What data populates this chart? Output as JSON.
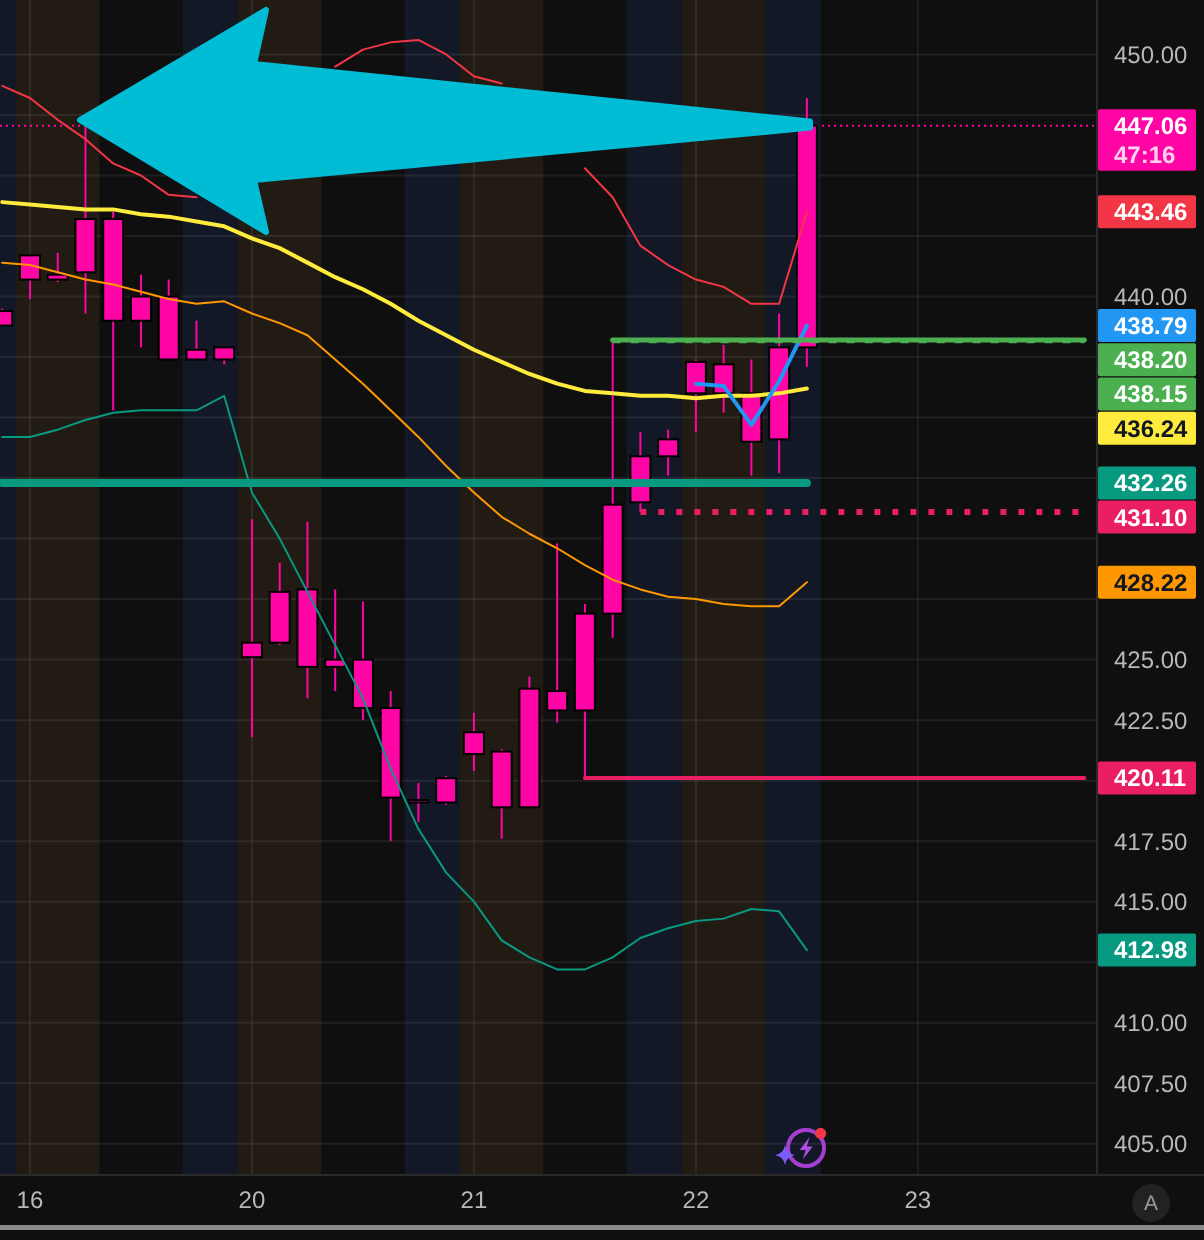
{
  "chart_data": {
    "type": "candlestick",
    "color": "#ff05a5",
    "categories": [
      null,
      "16",
      null,
      null,
      null,
      null,
      null,
      null,
      null,
      "20",
      null,
      null,
      null,
      null,
      null,
      null,
      null,
      "21",
      null,
      null,
      null,
      null,
      null,
      null,
      null,
      "22",
      null,
      null,
      null,
      null,
      null,
      null,
      null,
      "23",
      null,
      null,
      null,
      null,
      null,
      null
    ],
    "ohlc": [
      [
        438.8,
        439.5,
        438.8,
        439.4
      ],
      [
        440.7,
        441.7,
        439.9,
        441.7
      ],
      [
        440.7,
        441.8,
        440.6,
        440.9
      ],
      [
        441.0,
        447.1,
        439.3,
        443.2
      ],
      [
        439.0,
        443.5,
        435.3,
        443.2
      ],
      [
        439.0,
        440.9,
        437.9,
        440.0
      ],
      [
        437.4,
        440.7,
        437.4,
        440.0
      ],
      [
        437.4,
        439.0,
        437.4,
        437.8
      ],
      [
        437.4,
        437.9,
        437.2,
        437.9
      ],
      [
        425.1,
        430.8,
        421.8,
        425.7
      ],
      [
        425.7,
        429.0,
        425.6,
        427.8
      ],
      [
        424.7,
        430.7,
        423.4,
        427.9
      ],
      [
        424.7,
        427.9,
        423.7,
        425.0
      ],
      [
        423.0,
        427.4,
        422.5,
        425.0
      ],
      [
        419.3,
        423.7,
        417.5,
        423.0
      ],
      [
        419.1,
        419.9,
        418.3,
        419.2
      ],
      [
        419.1,
        420.2,
        419.0,
        420.1
      ],
      [
        421.1,
        422.8,
        420.4,
        422.0
      ],
      [
        418.9,
        421.3,
        417.6,
        421.2
      ],
      [
        418.9,
        424.3,
        418.9,
        423.8
      ],
      [
        422.9,
        429.8,
        422.4,
        423.7
      ],
      [
        422.9,
        427.3,
        420.11,
        426.9
      ],
      [
        426.9,
        438.2,
        425.9,
        431.4
      ],
      [
        431.5,
        434.4,
        431.1,
        433.4
      ],
      [
        433.4,
        434.5,
        432.6,
        434.1
      ],
      [
        436.0,
        437.4,
        434.4,
        437.3
      ],
      [
        436.0,
        438.0,
        435.2,
        437.2
      ],
      [
        434.0,
        437.4,
        432.6,
        436.0
      ],
      [
        434.1,
        439.3,
        432.7,
        437.9
      ],
      [
        437.9,
        448.2,
        437.1,
        447.06
      ],
      null,
      null,
      null,
      null,
      null,
      null,
      null,
      null,
      null,
      null
    ],
    "series": [
      {
        "type": "line",
        "color": "#f23645",
        "values": [
          448.7,
          448.2,
          447.3,
          446.5,
          445.5,
          445.0,
          444.2,
          444.1,
          null,
          null,
          null,
          null,
          449.5,
          450.2,
          450.5,
          450.6,
          450.0,
          449.1,
          448.8,
          null,
          null,
          445.3,
          444.1,
          442.1,
          441.3,
          440.7,
          440.4,
          439.7,
          439.7,
          443.5,
          null,
          null,
          null,
          null,
          null,
          null,
          null,
          null,
          null,
          null
        ]
      },
      {
        "type": "line",
        "color": "#ff9800",
        "values": [
          441.4,
          441.3,
          441.0,
          440.7,
          440.5,
          440.2,
          439.9,
          439.7,
          439.8,
          439.3,
          438.9,
          438.4,
          437.4,
          436.4,
          435.3,
          434.2,
          433.0,
          431.9,
          430.9,
          430.2,
          429.6,
          428.9,
          428.3,
          427.9,
          427.6,
          427.5,
          427.3,
          427.2,
          427.2,
          428.2,
          null,
          null,
          null,
          null,
          null,
          null,
          null,
          null,
          null,
          null
        ]
      },
      {
        "type": "line",
        "color": "#089981",
        "values": [
          434.2,
          434.2,
          434.5,
          434.9,
          435.2,
          435.3,
          435.3,
          435.3,
          435.9,
          431.9,
          430.0,
          427.8,
          425.6,
          423.4,
          420.5,
          418.0,
          416.2,
          415.0,
          413.4,
          412.7,
          412.2,
          412.2,
          412.7,
          413.5,
          413.9,
          414.2,
          414.3,
          414.7,
          414.6,
          413.0,
          null,
          null,
          null,
          null,
          null,
          null,
          null,
          null,
          null,
          null
        ]
      },
      {
        "type": "line",
        "color": "#ffeb3b",
        "values": [
          443.9,
          443.8,
          443.7,
          443.6,
          443.6,
          443.4,
          443.3,
          443.1,
          442.9,
          442.4,
          442.0,
          441.4,
          440.8,
          440.3,
          439.7,
          439.0,
          438.4,
          437.8,
          437.3,
          436.8,
          436.4,
          436.1,
          436.0,
          435.9,
          435.9,
          435.8,
          435.9,
          435.9,
          436.0,
          436.2,
          null,
          null,
          null,
          null,
          null,
          null,
          null,
          null,
          null,
          null
        ]
      },
      {
        "type": "line",
        "color": "#2196f3",
        "values": [
          null,
          null,
          null,
          null,
          null,
          null,
          null,
          null,
          null,
          null,
          null,
          null,
          null,
          null,
          null,
          null,
          null,
          null,
          null,
          null,
          null,
          null,
          null,
          null,
          null,
          436.4,
          436.3,
          434.7,
          436.5,
          438.8,
          null,
          null,
          null,
          null,
          null,
          null,
          null,
          null,
          null,
          null
        ]
      },
      {
        "type": "line",
        "color": "#089981",
        "values": [
          432.3,
          432.3,
          432.3,
          432.3,
          432.3,
          432.3,
          432.3,
          432.3,
          432.3,
          432.3,
          432.3,
          432.3,
          432.3,
          432.3,
          432.3,
          432.3,
          432.3,
          432.3,
          432.3,
          432.3,
          432.3,
          432.3,
          432.3,
          432.3,
          432.3,
          432.3,
          432.3,
          432.3,
          432.3,
          432.3,
          null,
          null,
          null,
          null,
          null,
          null,
          null,
          null,
          null,
          null
        ]
      },
      {
        "type": "line",
        "color": "#4caf50",
        "values": [
          null,
          null,
          null,
          null,
          null,
          null,
          null,
          null,
          null,
          null,
          null,
          null,
          null,
          null,
          null,
          null,
          null,
          null,
          null,
          null,
          null,
          null,
          438.2,
          438.2,
          438.2,
          438.2,
          438.2,
          438.2,
          438.2,
          438.2,
          438.2,
          438.2,
          438.2,
          438.2,
          438.2,
          438.2,
          438.2,
          438.2,
          438.2,
          438.2
        ],
        "value_labels": [
          null,
          null,
          null,
          null,
          null,
          null,
          null,
          null,
          null,
          null,
          null,
          null,
          null,
          null,
          null,
          null,
          null,
          null,
          null,
          null,
          null,
          null,
          null,
          null,
          null,
          null,
          null,
          null,
          null,
          null,
          null,
          null,
          null,
          null,
          null,
          null,
          null,
          null,
          null,
          "438.20"
        ]
      },
      {
        "type": "line",
        "color": "#4caf50",
        "line_style": "dashed",
        "values": [
          null,
          null,
          null,
          null,
          null,
          null,
          null,
          null,
          null,
          null,
          null,
          null,
          null,
          null,
          null,
          null,
          null,
          null,
          null,
          null,
          null,
          null,
          438.15,
          438.15,
          438.15,
          438.15,
          438.15,
          438.15,
          438.15,
          438.15,
          438.15,
          438.15,
          438.15,
          438.15,
          438.15,
          438.15,
          438.15,
          438.15,
          438.15,
          438.15
        ],
        "value_labels": [
          null,
          null,
          null,
          null,
          null,
          null,
          null,
          null,
          null,
          null,
          null,
          null,
          null,
          null,
          null,
          null,
          null,
          null,
          null,
          null,
          null,
          null,
          null,
          null,
          null,
          null,
          null,
          null,
          null,
          null,
          null,
          null,
          null,
          null,
          null,
          null,
          null,
          null,
          null,
          "438.15"
        ]
      },
      {
        "type": "line",
        "color": "#e91e63",
        "line_style": "dotted",
        "values": [
          null,
          null,
          null,
          null,
          null,
          null,
          null,
          null,
          null,
          null,
          null,
          null,
          null,
          null,
          null,
          null,
          null,
          null,
          null,
          null,
          null,
          null,
          null,
          431.1,
          431.1,
          431.1,
          431.1,
          431.1,
          431.1,
          431.1,
          431.1,
          431.1,
          431.1,
          431.1,
          431.1,
          431.1,
          431.1,
          431.1,
          431.1,
          431.1
        ],
        "value_labels": [
          null,
          null,
          null,
          null,
          null,
          null,
          null,
          null,
          null,
          null,
          null,
          null,
          null,
          null,
          null,
          null,
          null,
          null,
          null,
          null,
          null,
          null,
          null,
          null,
          null,
          null,
          null,
          null,
          null,
          null,
          null,
          null,
          null,
          null,
          null,
          null,
          null,
          null,
          null,
          "431.10"
        ]
      },
      {
        "type": "line",
        "color": "#e91e63",
        "values": [
          null,
          null,
          null,
          null,
          null,
          null,
          null,
          null,
          null,
          null,
          null,
          null,
          null,
          null,
          null,
          null,
          null,
          null,
          null,
          null,
          null,
          420.11,
          420.11,
          420.11,
          420.11,
          420.11,
          420.11,
          420.11,
          420.11,
          420.11,
          420.11,
          420.11,
          420.11,
          420.11,
          420.11,
          420.11,
          420.11,
          420.11,
          420.11,
          420.11
        ],
        "value_labels": [
          null,
          null,
          null,
          null,
          null,
          null,
          null,
          null,
          null,
          null,
          null,
          null,
          null,
          null,
          null,
          null,
          null,
          null,
          null,
          null,
          null,
          null,
          null,
          null,
          null,
          null,
          null,
          null,
          null,
          null,
          null,
          null,
          null,
          null,
          null,
          null,
          null,
          null,
          null,
          "420.11"
        ]
      }
    ],
    "ref_lines": [
      {
        "axis": "y",
        "value": 447.06,
        "label": "447.06",
        "color": "#ff05a5",
        "line_style": "dotted"
      }
    ],
    "ylim": [
      403.75,
      452.25
    ],
    "yticks": [
      {
        "value": 405,
        "label": "405.00"
      },
      {
        "value": 407.5,
        "label": "407.50"
      },
      {
        "value": 410,
        "label": "410.00"
      },
      {
        "value": 412.5,
        "label": null
      },
      {
        "value": 415,
        "label": "415.00"
      },
      {
        "value": 417.5,
        "label": "417.50"
      },
      {
        "value": 420,
        "label": null
      },
      {
        "value": 422.5,
        "label": "422.50"
      },
      {
        "value": 425,
        "label": "425.00"
      },
      {
        "value": 427.5,
        "label": null
      },
      {
        "value": 430,
        "label": null
      },
      {
        "value": 432.5,
        "label": null
      },
      {
        "value": 435,
        "label": null
      },
      {
        "value": 437.5,
        "label": null
      },
      {
        "value": 440,
        "label": "440.00"
      },
      {
        "value": 442.5,
        "label": null
      },
      {
        "value": 445,
        "label": null
      },
      {
        "value": 447.5,
        "label": null
      },
      {
        "value": 450,
        "label": "450.00"
      }
    ],
    "grid": true,
    "annotations": [
      "47:16",
      "443.46",
      "428.22",
      "412.98",
      "436.24",
      "438.79",
      "432.26",
      "A"
    ]
  }
}
